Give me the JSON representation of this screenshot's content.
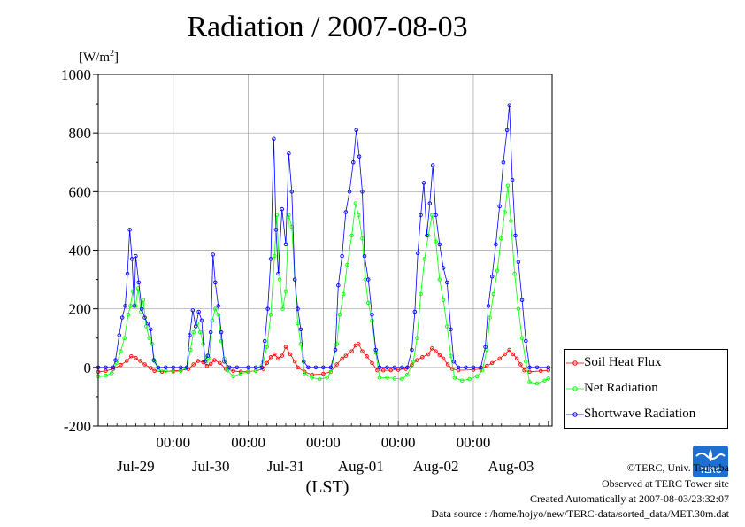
{
  "chart_data": {
    "type": "line",
    "title": "Radiation / 2007-08-03",
    "ylabel": "[W/m2]",
    "ylabel_unit_base": "[W/m",
    "ylabel_unit_exp": "2",
    "ylabel_unit_close": "]",
    "xlabel": "(LST)",
    "ylim": [
      -200,
      1000
    ],
    "yticks": [
      -200,
      0,
      200,
      400,
      600,
      800,
      1000
    ],
    "xlim": [
      0,
      6.05
    ],
    "midnight_labels": [
      "00:00",
      "00:00",
      "00:00",
      "00:00",
      "00:00"
    ],
    "day_labels": [
      "Jul-29",
      "Jul-30",
      "Jul-31",
      "Aug-01",
      "Aug-02",
      "Aug-03"
    ],
    "grid": true,
    "legend_placement": "right",
    "series": [
      {
        "name": "Soil Heat Flux",
        "color": "#ff0000",
        "points": [
          [
            0,
            -15
          ],
          [
            0.1,
            -12
          ],
          [
            0.2,
            -5
          ],
          [
            0.3,
            8
          ],
          [
            0.38,
            22
          ],
          [
            0.44,
            38
          ],
          [
            0.5,
            32
          ],
          [
            0.56,
            22
          ],
          [
            0.62,
            10
          ],
          [
            0.7,
            -2
          ],
          [
            0.75,
            -12
          ],
          [
            0.85,
            -15
          ],
          [
            1.0,
            -12
          ],
          [
            1.1,
            -10
          ],
          [
            1.2,
            -6
          ],
          [
            1.27,
            10
          ],
          [
            1.33,
            22
          ],
          [
            1.4,
            18
          ],
          [
            1.45,
            5
          ],
          [
            1.5,
            12
          ],
          [
            1.55,
            25
          ],
          [
            1.62,
            15
          ],
          [
            1.7,
            -5
          ],
          [
            1.8,
            -12
          ],
          [
            1.9,
            -15
          ],
          [
            2.0,
            -14
          ],
          [
            2.1,
            -12
          ],
          [
            2.2,
            -5
          ],
          [
            2.25,
            15
          ],
          [
            2.3,
            35
          ],
          [
            2.35,
            45
          ],
          [
            2.4,
            30
          ],
          [
            2.45,
            40
          ],
          [
            2.5,
            70
          ],
          [
            2.56,
            45
          ],
          [
            2.62,
            20
          ],
          [
            2.66,
            0
          ],
          [
            2.75,
            -15
          ],
          [
            2.85,
            -25
          ],
          [
            3.0,
            -22
          ],
          [
            3.1,
            -15
          ],
          [
            3.18,
            10
          ],
          [
            3.25,
            30
          ],
          [
            3.3,
            40
          ],
          [
            3.38,
            55
          ],
          [
            3.43,
            75
          ],
          [
            3.47,
            80
          ],
          [
            3.52,
            55
          ],
          [
            3.58,
            38
          ],
          [
            3.65,
            15
          ],
          [
            3.72,
            -10
          ],
          [
            3.8,
            -10
          ],
          [
            3.9,
            -10
          ],
          [
            4.0,
            -8
          ],
          [
            4.1,
            -5
          ],
          [
            4.18,
            8
          ],
          [
            4.25,
            25
          ],
          [
            4.32,
            35
          ],
          [
            4.4,
            45
          ],
          [
            4.45,
            65
          ],
          [
            4.5,
            55
          ],
          [
            4.55,
            42
          ],
          [
            4.6,
            30
          ],
          [
            4.66,
            10
          ],
          [
            4.72,
            -5
          ],
          [
            4.8,
            -10
          ],
          [
            5.0,
            -8
          ],
          [
            5.1,
            -5
          ],
          [
            5.18,
            5
          ],
          [
            5.25,
            15
          ],
          [
            5.35,
            30
          ],
          [
            5.42,
            45
          ],
          [
            5.48,
            60
          ],
          [
            5.53,
            45
          ],
          [
            5.58,
            30
          ],
          [
            5.63,
            10
          ],
          [
            5.68,
            -10
          ],
          [
            5.75,
            -15
          ],
          [
            5.9,
            -12
          ],
          [
            6.0,
            -10
          ]
        ]
      },
      {
        "name": "Net Radiation",
        "color": "#00ff00",
        "points": [
          [
            0,
            -30
          ],
          [
            0.1,
            -28
          ],
          [
            0.18,
            -20
          ],
          [
            0.25,
            15
          ],
          [
            0.3,
            55
          ],
          [
            0.35,
            100
          ],
          [
            0.4,
            180
          ],
          [
            0.43,
            210
          ],
          [
            0.46,
            260
          ],
          [
            0.5,
            210
          ],
          [
            0.53,
            270
          ],
          [
            0.57,
            190
          ],
          [
            0.6,
            230
          ],
          [
            0.64,
            140
          ],
          [
            0.68,
            100
          ],
          [
            0.72,
            80
          ],
          [
            0.75,
            20
          ],
          [
            0.8,
            -8
          ],
          [
            0.9,
            -12
          ],
          [
            1.0,
            -15
          ],
          [
            1.1,
            -12
          ],
          [
            1.18,
            0
          ],
          [
            1.23,
            60
          ],
          [
            1.27,
            120
          ],
          [
            1.32,
            150
          ],
          [
            1.36,
            120
          ],
          [
            1.4,
            80
          ],
          [
            1.44,
            20
          ],
          [
            1.48,
            30
          ],
          [
            1.52,
            160
          ],
          [
            1.56,
            200
          ],
          [
            1.6,
            180
          ],
          [
            1.64,
            90
          ],
          [
            1.68,
            30
          ],
          [
            1.72,
            -10
          ],
          [
            1.8,
            -30
          ],
          [
            1.9,
            -22
          ],
          [
            2.0,
            -15
          ],
          [
            2.1,
            -12
          ],
          [
            2.2,
            20
          ],
          [
            2.25,
            70
          ],
          [
            2.3,
            180
          ],
          [
            2.35,
            380
          ],
          [
            2.38,
            520
          ],
          [
            2.42,
            300
          ],
          [
            2.46,
            200
          ],
          [
            2.5,
            260
          ],
          [
            2.54,
            520
          ],
          [
            2.58,
            480
          ],
          [
            2.62,
            300
          ],
          [
            2.66,
            150
          ],
          [
            2.7,
            80
          ],
          [
            2.75,
            -20
          ],
          [
            2.85,
            -35
          ],
          [
            2.95,
            -40
          ],
          [
            3.05,
            -35
          ],
          [
            3.1,
            -15
          ],
          [
            3.18,
            80
          ],
          [
            3.22,
            180
          ],
          [
            3.27,
            250
          ],
          [
            3.32,
            350
          ],
          [
            3.38,
            450
          ],
          [
            3.43,
            560
          ],
          [
            3.47,
            520
          ],
          [
            3.52,
            440
          ],
          [
            3.56,
            300
          ],
          [
            3.6,
            220
          ],
          [
            3.65,
            160
          ],
          [
            3.7,
            50
          ],
          [
            3.75,
            -35
          ],
          [
            3.85,
            -35
          ],
          [
            3.95,
            -38
          ],
          [
            4.05,
            -40
          ],
          [
            4.12,
            -25
          ],
          [
            4.2,
            20
          ],
          [
            4.25,
            100
          ],
          [
            4.3,
            250
          ],
          [
            4.35,
            370
          ],
          [
            4.4,
            450
          ],
          [
            4.45,
            520
          ],
          [
            4.5,
            430
          ],
          [
            4.55,
            300
          ],
          [
            4.6,
            230
          ],
          [
            4.65,
            140
          ],
          [
            4.7,
            40
          ],
          [
            4.75,
            -35
          ],
          [
            4.85,
            -45
          ],
          [
            4.95,
            -40
          ],
          [
            5.05,
            -30
          ],
          [
            5.12,
            -10
          ],
          [
            5.18,
            60
          ],
          [
            5.22,
            170
          ],
          [
            5.27,
            250
          ],
          [
            5.32,
            330
          ],
          [
            5.37,
            440
          ],
          [
            5.42,
            530
          ],
          [
            5.46,
            620
          ],
          [
            5.5,
            500
          ],
          [
            5.55,
            320
          ],
          [
            5.6,
            200
          ],
          [
            5.65,
            100
          ],
          [
            5.7,
            20
          ],
          [
            5.75,
            -50
          ],
          [
            5.85,
            -55
          ],
          [
            5.95,
            -45
          ],
          [
            6.0,
            -38
          ]
        ]
      },
      {
        "name": "Shortwave Radiation",
        "color": "#0000ff",
        "points": [
          [
            0,
            0
          ],
          [
            0.1,
            0
          ],
          [
            0.2,
            0
          ],
          [
            0.23,
            25
          ],
          [
            0.28,
            110
          ],
          [
            0.32,
            170
          ],
          [
            0.36,
            210
          ],
          [
            0.39,
            320
          ],
          [
            0.42,
            470
          ],
          [
            0.45,
            370
          ],
          [
            0.48,
            210
          ],
          [
            0.5,
            380
          ],
          [
            0.54,
            290
          ],
          [
            0.58,
            200
          ],
          [
            0.62,
            170
          ],
          [
            0.66,
            150
          ],
          [
            0.7,
            130
          ],
          [
            0.74,
            25
          ],
          [
            0.8,
            0
          ],
          [
            0.9,
            0
          ],
          [
            1.0,
            0
          ],
          [
            1.1,
            0
          ],
          [
            1.18,
            0
          ],
          [
            1.22,
            110
          ],
          [
            1.26,
            195
          ],
          [
            1.3,
            140
          ],
          [
            1.34,
            190
          ],
          [
            1.38,
            160
          ],
          [
            1.42,
            20
          ],
          [
            1.46,
            40
          ],
          [
            1.5,
            120
          ],
          [
            1.53,
            385
          ],
          [
            1.56,
            290
          ],
          [
            1.6,
            210
          ],
          [
            1.64,
            120
          ],
          [
            1.68,
            20
          ],
          [
            1.75,
            0
          ],
          [
            1.85,
            0
          ],
          [
            2.0,
            0
          ],
          [
            2.1,
            0
          ],
          [
            2.18,
            0
          ],
          [
            2.22,
            90
          ],
          [
            2.26,
            200
          ],
          [
            2.3,
            370
          ],
          [
            2.34,
            780
          ],
          [
            2.37,
            470
          ],
          [
            2.4,
            320
          ],
          [
            2.45,
            540
          ],
          [
            2.5,
            420
          ],
          [
            2.54,
            730
          ],
          [
            2.58,
            600
          ],
          [
            2.62,
            300
          ],
          [
            2.66,
            200
          ],
          [
            2.7,
            130
          ],
          [
            2.74,
            20
          ],
          [
            2.8,
            0
          ],
          [
            2.9,
            0
          ],
          [
            3.0,
            0
          ],
          [
            3.1,
            0
          ],
          [
            3.16,
            60
          ],
          [
            3.2,
            280
          ],
          [
            3.25,
            380
          ],
          [
            3.3,
            530
          ],
          [
            3.35,
            600
          ],
          [
            3.4,
            700
          ],
          [
            3.44,
            810
          ],
          [
            3.48,
            720
          ],
          [
            3.52,
            600
          ],
          [
            3.55,
            380
          ],
          [
            3.6,
            300
          ],
          [
            3.65,
            180
          ],
          [
            3.7,
            60
          ],
          [
            3.75,
            0
          ],
          [
            3.85,
            0
          ],
          [
            3.95,
            0
          ],
          [
            4.05,
            0
          ],
          [
            4.12,
            0
          ],
          [
            4.18,
            60
          ],
          [
            4.22,
            190
          ],
          [
            4.26,
            390
          ],
          [
            4.3,
            520
          ],
          [
            4.34,
            630
          ],
          [
            4.38,
            450
          ],
          [
            4.42,
            560
          ],
          [
            4.46,
            690
          ],
          [
            4.5,
            520
          ],
          [
            4.55,
            420
          ],
          [
            4.6,
            340
          ],
          [
            4.65,
            290
          ],
          [
            4.7,
            130
          ],
          [
            4.74,
            20
          ],
          [
            4.8,
            0
          ],
          [
            4.9,
            0
          ],
          [
            5.0,
            0
          ],
          [
            5.1,
            0
          ],
          [
            5.16,
            70
          ],
          [
            5.2,
            210
          ],
          [
            5.25,
            310
          ],
          [
            5.3,
            420
          ],
          [
            5.35,
            550
          ],
          [
            5.4,
            700
          ],
          [
            5.45,
            810
          ],
          [
            5.48,
            895
          ],
          [
            5.52,
            640
          ],
          [
            5.56,
            450
          ],
          [
            5.6,
            360
          ],
          [
            5.65,
            230
          ],
          [
            5.7,
            90
          ],
          [
            5.75,
            0
          ],
          [
            5.85,
            0
          ],
          [
            6.0,
            0
          ]
        ]
      }
    ]
  },
  "footer": {
    "copyright": "©TERC, Univ. Tsukuba",
    "observed": "Observed at TERC Tower site",
    "created": "Created Automatically at 2007-08-03/23:32:07",
    "source": "Data source : /home/hojyo/new/TERC-data/sorted_data/MET.30m.dat"
  },
  "logo": {
    "text": "TERC",
    "color": "#1d6fd1"
  }
}
